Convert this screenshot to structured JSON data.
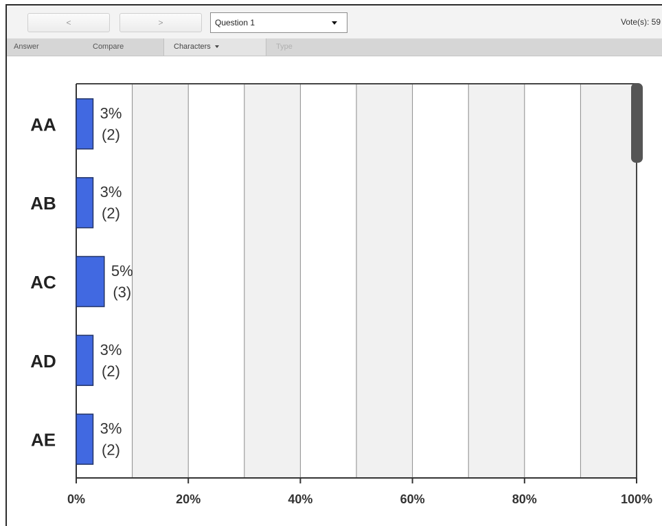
{
  "toolbar": {
    "prev_label": "<",
    "next_label": ">",
    "question_select": "Question 1",
    "votes_label": "Vote(s): 59"
  },
  "tabs": {
    "answer": "Answer",
    "compare": "Compare",
    "characters": "Characters",
    "type": "Type"
  },
  "colors": {
    "bar": "#4169e1",
    "band": "#f1f1f1",
    "scroll": "#555555"
  },
  "chart_data": {
    "type": "bar",
    "orientation": "horizontal",
    "categories": [
      "AA",
      "AB",
      "AC",
      "AD",
      "AE"
    ],
    "values": [
      3,
      3,
      5,
      3,
      3
    ],
    "counts": [
      2,
      2,
      3,
      2,
      2
    ],
    "value_labels": [
      "3%",
      "3%",
      "5%",
      "3%",
      "3%"
    ],
    "count_labels": [
      "(2)",
      "(2)",
      "(3)",
      "(2)",
      "(2)"
    ],
    "xlim": [
      0,
      100
    ],
    "x_ticks": [
      "0%",
      "20%",
      "40%",
      "60%",
      "80%",
      "100%"
    ],
    "grid": true
  }
}
